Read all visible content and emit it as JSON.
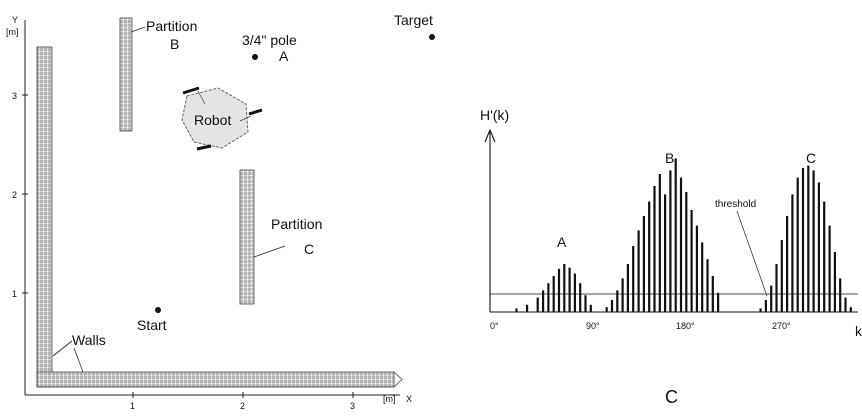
{
  "left_map": {
    "y_axis_label": "Y",
    "y_unit": "[m]",
    "x_axis_label": "X",
    "x_unit": "[m]",
    "y_ticks": [
      "1",
      "2",
      "3"
    ],
    "x_ticks": [
      "1",
      "2",
      "3"
    ],
    "labels": {
      "partition_b": [
        "Partition",
        "B"
      ],
      "pole": [
        "3/4\" pole",
        "A"
      ],
      "target": "Target",
      "robot": "Robot",
      "partition_c": [
        "Partition",
        "C"
      ],
      "start": "Start",
      "walls": "Walls"
    }
  },
  "right_histogram": {
    "y_label": "H'(k)",
    "x_label": "k",
    "x_ticks": [
      "0°",
      "90°",
      "180°",
      "270°"
    ],
    "peak_labels": [
      "A",
      "B",
      "C"
    ],
    "threshold_label": "threshold",
    "caption": "C"
  },
  "chart_data": {
    "type": "bar",
    "bars": [
      {
        "k_deg": 25,
        "h": 3
      },
      {
        "k_deg": 35,
        "h": 6
      },
      {
        "k_deg": 45,
        "h": 12
      },
      {
        "k_deg": 50,
        "h": 18
      },
      {
        "k_deg": 55,
        "h": 24
      },
      {
        "k_deg": 60,
        "h": 30
      },
      {
        "k_deg": 65,
        "h": 36
      },
      {
        "k_deg": 70,
        "h": 40
      },
      {
        "k_deg": 75,
        "h": 37
      },
      {
        "k_deg": 80,
        "h": 32
      },
      {
        "k_deg": 85,
        "h": 24
      },
      {
        "k_deg": 90,
        "h": 14
      },
      {
        "k_deg": 95,
        "h": 6
      },
      {
        "k_deg": 110,
        "h": 4
      },
      {
        "k_deg": 115,
        "h": 10
      },
      {
        "k_deg": 120,
        "h": 18
      },
      {
        "k_deg": 125,
        "h": 28
      },
      {
        "k_deg": 130,
        "h": 40
      },
      {
        "k_deg": 135,
        "h": 55
      },
      {
        "k_deg": 140,
        "h": 68
      },
      {
        "k_deg": 145,
        "h": 80
      },
      {
        "k_deg": 150,
        "h": 92
      },
      {
        "k_deg": 155,
        "h": 105
      },
      {
        "k_deg": 160,
        "h": 115
      },
      {
        "k_deg": 165,
        "h": 98
      },
      {
        "k_deg": 170,
        "h": 118
      },
      {
        "k_deg": 175,
        "h": 128
      },
      {
        "k_deg": 180,
        "h": 112
      },
      {
        "k_deg": 185,
        "h": 100
      },
      {
        "k_deg": 190,
        "h": 85
      },
      {
        "k_deg": 195,
        "h": 72
      },
      {
        "k_deg": 200,
        "h": 58
      },
      {
        "k_deg": 205,
        "h": 44
      },
      {
        "k_deg": 210,
        "h": 30
      },
      {
        "k_deg": 215,
        "h": 16
      },
      {
        "k_deg": 255,
        "h": 3
      },
      {
        "k_deg": 260,
        "h": 10
      },
      {
        "k_deg": 265,
        "h": 22
      },
      {
        "k_deg": 270,
        "h": 40
      },
      {
        "k_deg": 275,
        "h": 60
      },
      {
        "k_deg": 280,
        "h": 80
      },
      {
        "k_deg": 285,
        "h": 98
      },
      {
        "k_deg": 290,
        "h": 112
      },
      {
        "k_deg": 295,
        "h": 120
      },
      {
        "k_deg": 300,
        "h": 122
      },
      {
        "k_deg": 305,
        "h": 118
      },
      {
        "k_deg": 310,
        "h": 108
      },
      {
        "k_deg": 315,
        "h": 92
      },
      {
        "k_deg": 320,
        "h": 72
      },
      {
        "k_deg": 325,
        "h": 50
      },
      {
        "k_deg": 330,
        "h": 28
      },
      {
        "k_deg": 335,
        "h": 12
      },
      {
        "k_deg": 340,
        "h": 4
      }
    ],
    "threshold": 15,
    "xlim": [
      0,
      360
    ],
    "ylim": [
      0,
      150
    ],
    "xlabel": "k",
    "ylabel": "H'(k)"
  }
}
